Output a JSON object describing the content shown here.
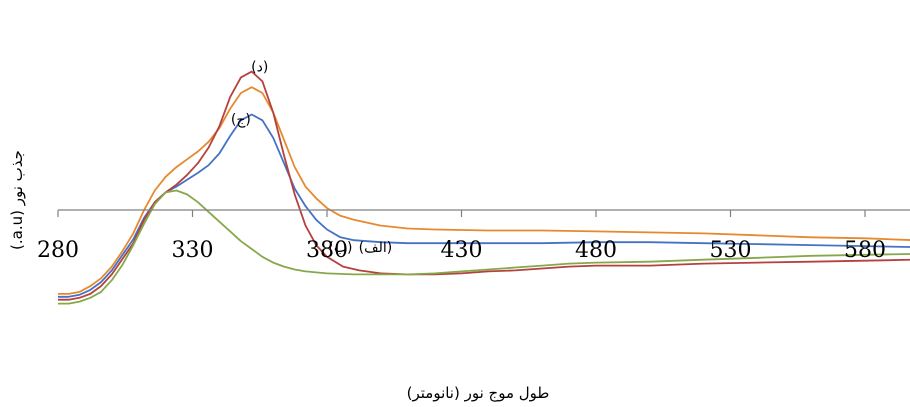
{
  "chart_data": {
    "type": "line",
    "title": "",
    "xlabel": "طول موج نور (نانومتر)",
    "ylabel": "جذب نور (a.u.)",
    "xlim": [
      280,
      598
    ],
    "x_ticks": [
      280,
      330,
      380,
      430,
      480,
      530,
      580
    ],
    "grid": false,
    "legend": "none",
    "series": [
      {
        "color": "#e6892e",
        "points": [
          [
            280,
            -0.43
          ],
          [
            284,
            -0.43
          ],
          [
            288,
            -0.42
          ],
          [
            292,
            -0.39
          ],
          [
            296,
            -0.35
          ],
          [
            300,
            -0.29
          ],
          [
            304,
            -0.21
          ],
          [
            308,
            -0.12
          ],
          [
            312,
            0.0
          ],
          [
            316,
            0.1
          ],
          [
            320,
            0.17
          ],
          [
            324,
            0.22
          ],
          [
            328,
            0.26
          ],
          [
            332,
            0.3
          ],
          [
            336,
            0.35
          ],
          [
            340,
            0.42
          ],
          [
            344,
            0.52
          ],
          [
            348,
            0.6
          ],
          [
            352,
            0.63
          ],
          [
            356,
            0.6
          ],
          [
            360,
            0.5
          ],
          [
            364,
            0.36
          ],
          [
            368,
            0.22
          ],
          [
            372,
            0.12
          ],
          [
            376,
            0.06
          ],
          [
            380,
            0.01
          ],
          [
            385,
            -0.03
          ],
          [
            390,
            -0.05
          ],
          [
            400,
            -0.08
          ],
          [
            410,
            -0.095
          ],
          [
            420,
            -0.1
          ],
          [
            440,
            -0.105
          ],
          [
            460,
            -0.105
          ],
          [
            480,
            -0.11
          ],
          [
            500,
            -0.115
          ],
          [
            520,
            -0.12
          ],
          [
            540,
            -0.13
          ],
          [
            560,
            -0.14
          ],
          [
            580,
            -0.145
          ],
          [
            598,
            -0.155
          ]
        ]
      },
      {
        "color": "#4472c4",
        "points": [
          [
            280,
            -0.445
          ],
          [
            284,
            -0.445
          ],
          [
            288,
            -0.435
          ],
          [
            292,
            -0.41
          ],
          [
            296,
            -0.37
          ],
          [
            300,
            -0.31
          ],
          [
            304,
            -0.23
          ],
          [
            308,
            -0.15
          ],
          [
            312,
            -0.04
          ],
          [
            316,
            0.04
          ],
          [
            320,
            0.09
          ],
          [
            324,
            0.12
          ],
          [
            328,
            0.155
          ],
          [
            332,
            0.19
          ],
          [
            336,
            0.23
          ],
          [
            340,
            0.29
          ],
          [
            344,
            0.38
          ],
          [
            348,
            0.46
          ],
          [
            352,
            0.49
          ],
          [
            356,
            0.46
          ],
          [
            360,
            0.37
          ],
          [
            364,
            0.24
          ],
          [
            368,
            0.11
          ],
          [
            372,
            0.02
          ],
          [
            376,
            -0.05
          ],
          [
            380,
            -0.1
          ],
          [
            385,
            -0.14
          ],
          [
            390,
            -0.155
          ],
          [
            400,
            -0.165
          ],
          [
            410,
            -0.17
          ],
          [
            420,
            -0.17
          ],
          [
            440,
            -0.17
          ],
          [
            460,
            -0.17
          ],
          [
            480,
            -0.165
          ],
          [
            500,
            -0.165
          ],
          [
            520,
            -0.17
          ],
          [
            540,
            -0.175
          ],
          [
            560,
            -0.18
          ],
          [
            580,
            -0.185
          ],
          [
            598,
            -0.19
          ]
        ]
      },
      {
        "color": "#b5413f",
        "points": [
          [
            280,
            -0.46
          ],
          [
            284,
            -0.46
          ],
          [
            288,
            -0.45
          ],
          [
            292,
            -0.43
          ],
          [
            296,
            -0.39
          ],
          [
            300,
            -0.33
          ],
          [
            304,
            -0.25
          ],
          [
            308,
            -0.17
          ],
          [
            312,
            -0.05
          ],
          [
            316,
            0.04
          ],
          [
            320,
            0.09
          ],
          [
            324,
            0.13
          ],
          [
            328,
            0.18
          ],
          [
            332,
            0.24
          ],
          [
            336,
            0.32
          ],
          [
            340,
            0.43
          ],
          [
            344,
            0.58
          ],
          [
            348,
            0.68
          ],
          [
            352,
            0.71
          ],
          [
            356,
            0.66
          ],
          [
            360,
            0.5
          ],
          [
            364,
            0.28
          ],
          [
            368,
            0.08
          ],
          [
            372,
            -0.08
          ],
          [
            376,
            -0.18
          ],
          [
            380,
            -0.24
          ],
          [
            386,
            -0.29
          ],
          [
            392,
            -0.31
          ],
          [
            400,
            -0.325
          ],
          [
            410,
            -0.33
          ],
          [
            420,
            -0.33
          ],
          [
            430,
            -0.325
          ],
          [
            440,
            -0.315
          ],
          [
            450,
            -0.31
          ],
          [
            460,
            -0.3
          ],
          [
            470,
            -0.29
          ],
          [
            480,
            -0.285
          ],
          [
            500,
            -0.285
          ],
          [
            520,
            -0.275
          ],
          [
            540,
            -0.27
          ],
          [
            560,
            -0.265
          ],
          [
            580,
            -0.26
          ],
          [
            598,
            -0.255
          ]
        ]
      },
      {
        "color": "#86a84b",
        "points": [
          [
            280,
            -0.48
          ],
          [
            284,
            -0.48
          ],
          [
            288,
            -0.47
          ],
          [
            292,
            -0.45
          ],
          [
            296,
            -0.42
          ],
          [
            300,
            -0.36
          ],
          [
            304,
            -0.28
          ],
          [
            308,
            -0.18
          ],
          [
            312,
            -0.07
          ],
          [
            316,
            0.03
          ],
          [
            320,
            0.09
          ],
          [
            324,
            0.1
          ],
          [
            328,
            0.08
          ],
          [
            332,
            0.04
          ],
          [
            336,
            -0.01
          ],
          [
            340,
            -0.06
          ],
          [
            344,
            -0.11
          ],
          [
            348,
            -0.16
          ],
          [
            352,
            -0.2
          ],
          [
            356,
            -0.24
          ],
          [
            360,
            -0.27
          ],
          [
            364,
            -0.29
          ],
          [
            368,
            -0.305
          ],
          [
            372,
            -0.315
          ],
          [
            376,
            -0.32
          ],
          [
            380,
            -0.325
          ],
          [
            390,
            -0.33
          ],
          [
            400,
            -0.33
          ],
          [
            410,
            -0.33
          ],
          [
            420,
            -0.325
          ],
          [
            430,
            -0.315
          ],
          [
            440,
            -0.305
          ],
          [
            450,
            -0.295
          ],
          [
            460,
            -0.285
          ],
          [
            470,
            -0.275
          ],
          [
            480,
            -0.27
          ],
          [
            500,
            -0.265
          ],
          [
            520,
            -0.255
          ],
          [
            540,
            -0.245
          ],
          [
            560,
            -0.235
          ],
          [
            580,
            -0.23
          ],
          [
            598,
            -0.225
          ]
        ]
      }
    ],
    "annotations": [
      {
        "text": "(د)",
        "x": 355,
        "y": 0.71
      },
      {
        "text": "(ج)",
        "x": 348,
        "y": 0.44
      },
      {
        "text": "(ب)",
        "x": 385,
        "y": -0.215
      },
      {
        "text": "(الف)",
        "x": 398,
        "y": -0.215
      }
    ]
  }
}
